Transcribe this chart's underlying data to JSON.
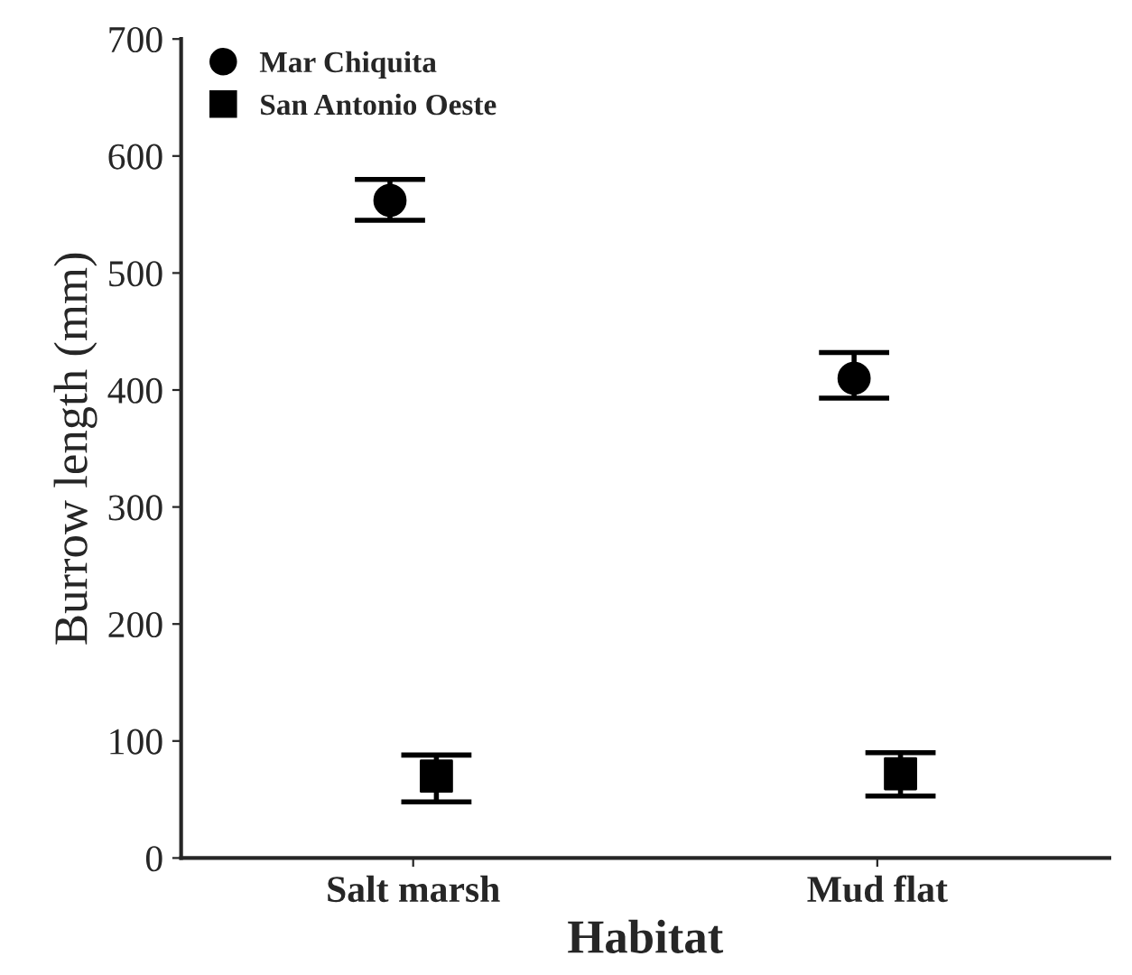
{
  "chart_data": {
    "type": "scatter",
    "xlabel": "Habitat",
    "ylabel": "Burrow length (mm)",
    "categories": [
      "Salt marsh",
      "Mud flat"
    ],
    "series": [
      {
        "name": "Mar Chiquita",
        "color": "#000000",
        "marker": "circle",
        "values": [
          562,
          410
        ],
        "errors": [
          [
            545,
            580
          ],
          [
            393,
            432
          ]
        ]
      },
      {
        "name": "San Antonio Oeste",
        "color": "#000000",
        "marker": "square",
        "values": [
          70,
          72
        ],
        "errors": [
          [
            48,
            88
          ],
          [
            53,
            90
          ]
        ]
      }
    ],
    "ylim": [
      0,
      700
    ],
    "yticks": [
      0,
      100,
      200,
      300,
      400,
      500,
      600,
      700
    ],
    "grid": false,
    "legend": "top left"
  }
}
